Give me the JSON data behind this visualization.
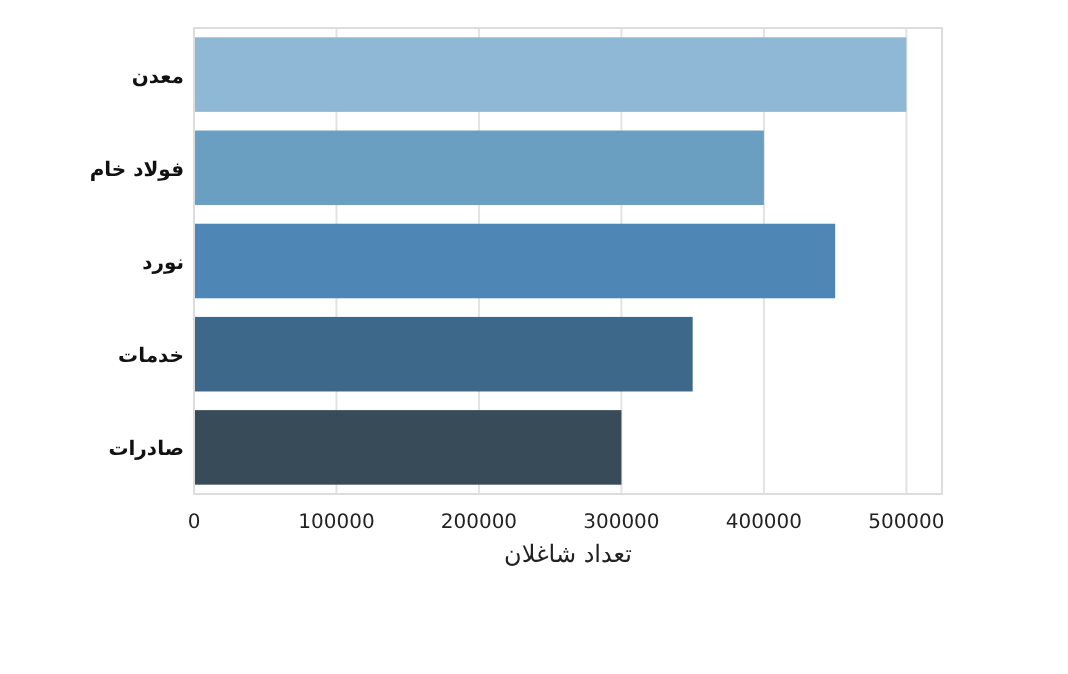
{
  "chart_data": {
    "type": "bar",
    "orientation": "horizontal",
    "xlabel": "تعداد شاغلان",
    "categories": [
      "معدن",
      "فولاد خام",
      "نورد",
      "خدمات",
      "صادرات"
    ],
    "values": [
      500000,
      400000,
      450000,
      350000,
      300000
    ],
    "colors": [
      "#8fb8d6",
      "#6a9fc2",
      "#4e86b5",
      "#3d6889",
      "#374c58"
    ],
    "xlim": [
      0,
      525000
    ],
    "xticks": [
      0,
      100000,
      200000,
      300000,
      400000,
      500000
    ],
    "grid": "x"
  }
}
